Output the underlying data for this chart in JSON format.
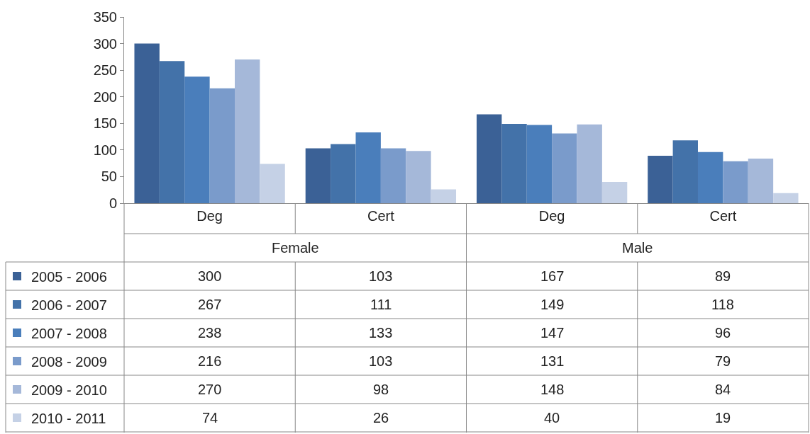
{
  "chart_data": {
    "type": "bar",
    "categories": [
      "Deg",
      "Cert",
      "Deg",
      "Cert"
    ],
    "annotations": [
      "Female",
      "Male"
    ],
    "series": [
      {
        "name": "2005 - 2006",
        "color": "#3b6196",
        "values": [
          300,
          103,
          167,
          89
        ]
      },
      {
        "name": "2006 - 2007",
        "color": "#4372a9",
        "values": [
          267,
          111,
          149,
          118
        ]
      },
      {
        "name": "2007 - 2008",
        "color": "#4a7ebb",
        "values": [
          238,
          133,
          147,
          96
        ]
      },
      {
        "name": "2008 - 2009",
        "color": "#7a9bcb",
        "values": [
          216,
          103,
          131,
          79
        ]
      },
      {
        "name": "2009 - 2010",
        "color": "#a5b8d9",
        "values": [
          270,
          98,
          148,
          84
        ]
      },
      {
        "name": "2010 - 2011",
        "color": "#c5d1e6",
        "values": [
          74,
          26,
          40,
          19
        ]
      }
    ],
    "ylim": [
      0,
      350
    ],
    "yticks": [
      0,
      50,
      100,
      150,
      200,
      250,
      300,
      350
    ],
    "legend": "bottom left",
    "data_labels": true
  }
}
